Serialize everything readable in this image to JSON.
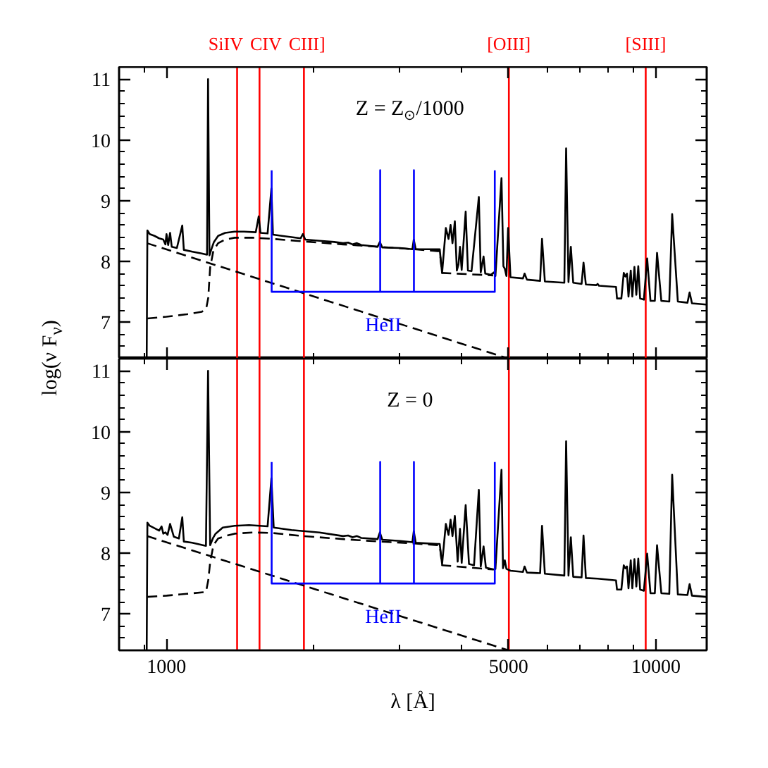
{
  "chart_data": [
    {
      "type": "line",
      "log": "x",
      "tick_labels": "y",
      "ylabel": "log(ν F$_{ν}$)",
      "annotations": [
        "Z = Z$_{⊙}$/1000"
      ],
      "xlim": [
        800,
        12700
      ],
      "xticks": [
        {
          "value": 900,
          "label": null
        },
        1000,
        {
          "value": 2000,
          "label": null
        },
        {
          "value": 3000,
          "label": null
        },
        {
          "value": 4000,
          "label": null
        },
        5000,
        {
          "value": 6000,
          "label": null
        },
        {
          "value": 7000,
          "label": null
        },
        {
          "value": 8000,
          "label": null
        },
        {
          "value": 9000,
          "label": null
        },
        10000
      ],
      "ylim": [
        6.4,
        11.2
      ],
      "yticks": [
        {
          "value": 6.6,
          "label": null
        },
        {
          "value": 6.8,
          "label": null
        },
        7,
        {
          "value": 7.2,
          "label": null
        },
        {
          "value": 7.4,
          "label": null
        },
        {
          "value": 7.6,
          "label": null
        },
        {
          "value": 7.8,
          "label": null
        },
        8,
        {
          "value": 8.2,
          "label": null
        },
        {
          "value": 8.4,
          "label": null
        },
        {
          "value": 8.6,
          "label": null
        },
        {
          "value": 8.8,
          "label": null
        },
        9,
        {
          "value": 9.2,
          "label": null
        },
        {
          "value": 9.4,
          "label": null
        },
        {
          "value": 9.6,
          "label": null
        },
        {
          "value": 9.8,
          "label": null
        },
        10,
        {
          "value": 10.2,
          "label": null
        },
        {
          "value": 10.4,
          "label": null
        },
        {
          "value": 10.6,
          "label": null
        },
        {
          "value": 10.8,
          "label": null
        },
        11
      ],
      "ref_lines": [
        {
          "axis": "x",
          "value": 1394,
          "label": "SiIV",
          "color": "#ff0000"
        },
        {
          "axis": "x",
          "value": 1549,
          "label": "CIV",
          "color": "#ff0000"
        },
        {
          "axis": "x",
          "value": 1909,
          "label": "CIII]",
          "color": "#ff0000"
        },
        {
          "axis": "x",
          "value": 5007,
          "label": "[OIII]",
          "color": "#ff0000"
        },
        {
          "axis": "x",
          "value": 9532,
          "label": "[SIII]",
          "color": "#ff0000"
        }
      ],
      "series": [
        {
          "color": "#000000",
          "line_style": "dashed",
          "x": [
            914,
            1000,
            1100,
            1180,
            1205,
            1217,
            1228,
            1247,
            1275,
            1318,
            1378,
            1500,
            1650,
            1900,
            2295,
            2729,
            3201,
            3577,
            3616,
            3657,
            4650
          ],
          "values": [
            7.06,
            7.09,
            7.13,
            7.17,
            7.22,
            7.4,
            7.9,
            8.18,
            8.3,
            8.36,
            8.39,
            8.39,
            8.37,
            8.33,
            8.28,
            8.24,
            8.2,
            8.17,
            8.17,
            7.81,
            7.77
          ]
        },
        {
          "color": "#000000",
          "line_style": "dashed",
          "x": [
            912,
            5000
          ],
          "values": [
            8.3,
            6.4
          ]
        },
        {
          "color": "#000000",
          "line_style": "solid",
          "x": [
            911,
            914,
            924,
            945,
            966,
            985,
            995,
            1000,
            1008,
            1017,
            1025,
            1050,
            1077,
            1085,
            1130,
            1180,
            1210,
            1216,
            1224,
            1235,
            1250,
            1275,
            1318,
            1378,
            1440,
            1522,
            1543,
            1556,
            1609,
            1638,
            1650,
            1720,
            1800,
            1880,
            1900,
            1921,
            2054,
            2200,
            2295,
            2350,
            2400,
            2450,
            2500,
            2564,
            2700,
            2729,
            2760,
            3000,
            3180,
            3201,
            3230,
            3400,
            3616,
            3657,
            3722,
            3770,
            3806,
            3840,
            3883,
            3920,
            3950,
            3978,
            4010,
            4086,
            4130,
            4200,
            4347,
            4386,
            4445,
            4480,
            4600,
            4667,
            4700,
            4836,
            4880,
            4912,
            4950,
            4989,
            5045,
            5350,
            5391,
            5451,
            5800,
            5852,
            5931,
            6500,
            6555,
            6628,
            6702,
            6777,
            7050,
            7114,
            7193,
            7550,
            7603,
            7650,
            8290,
            8327,
            8500,
            8596,
            8660,
            8728,
            8790,
            8884,
            8950,
            9039,
            9120,
            9204,
            9284,
            9450,
            9597,
            9748,
            9950,
            10054,
            10259,
            10650,
            10795,
            11087,
            11600,
            11718,
            11850,
            12665
          ],
          "values": [
            6.4,
            8.51,
            8.45,
            8.42,
            8.38,
            8.36,
            8.28,
            8.45,
            8.27,
            8.47,
            8.24,
            8.22,
            8.59,
            8.19,
            8.16,
            8.13,
            8.11,
            11.0,
            8.1,
            8.2,
            8.32,
            8.42,
            8.47,
            8.49,
            8.49,
            8.48,
            8.74,
            8.47,
            8.46,
            9.2,
            8.44,
            8.42,
            8.4,
            8.38,
            8.45,
            8.36,
            8.34,
            8.32,
            8.3,
            8.31,
            8.28,
            8.3,
            8.27,
            8.26,
            8.24,
            8.32,
            8.23,
            8.22,
            8.2,
            8.36,
            8.2,
            8.2,
            8.2,
            7.81,
            8.55,
            8.37,
            8.6,
            8.3,
            8.66,
            7.85,
            7.95,
            8.24,
            7.86,
            8.82,
            7.85,
            7.84,
            9.06,
            7.82,
            8.08,
            7.8,
            7.78,
            7.82,
            7.76,
            9.37,
            7.92,
            7.88,
            7.76,
            8.55,
            7.74,
            7.72,
            7.8,
            7.7,
            7.68,
            8.37,
            7.67,
            7.65,
            9.86,
            7.66,
            8.24,
            7.65,
            7.63,
            7.98,
            7.62,
            7.61,
            7.63,
            7.6,
            7.58,
            7.39,
            7.39,
            7.81,
            7.75,
            7.8,
            7.42,
            7.85,
            7.42,
            7.91,
            7.45,
            7.92,
            7.39,
            7.37,
            8.05,
            7.35,
            7.35,
            8.14,
            7.35,
            7.34,
            8.78,
            7.34,
            7.32,
            7.49,
            7.31,
            7.29
          ]
        },
        {
          "name": "HeII",
          "color": "#0000ff",
          "line_style": "solid",
          "x": [
            1640,
            1640,
            2733,
            2733,
            2733,
            3203,
            3203,
            3203,
            4686,
            4686
          ],
          "values": [
            9.5,
            7.5,
            7.5,
            9.5,
            7.5,
            7.5,
            9.5,
            7.5,
            7.5,
            9.5
          ]
        }
      ]
    },
    {
      "type": "line",
      "log": "x",
      "xlabel": "λ [Å]",
      "annotations": [
        "Z = 0"
      ],
      "xlim": [
        800,
        12700
      ],
      "xticks": [
        {
          "value": 900,
          "label": null
        },
        1000,
        {
          "value": 2000,
          "label": null
        },
        {
          "value": 3000,
          "label": null
        },
        {
          "value": 4000,
          "label": null
        },
        5000,
        {
          "value": 6000,
          "label": null
        },
        {
          "value": 7000,
          "label": null
        },
        {
          "value": 8000,
          "label": null
        },
        {
          "value": 9000,
          "label": null
        },
        10000
      ],
      "ylim": [
        6.4,
        11.2
      ],
      "yticks": [
        {
          "value": 6.6,
          "label": null
        },
        {
          "value": 6.8,
          "label": null
        },
        7,
        {
          "value": 7.2,
          "label": null
        },
        {
          "value": 7.4,
          "label": null
        },
        {
          "value": 7.6,
          "label": null
        },
        {
          "value": 7.8,
          "label": null
        },
        8,
        {
          "value": 8.2,
          "label": null
        },
        {
          "value": 8.4,
          "label": null
        },
        {
          "value": 8.6,
          "label": null
        },
        {
          "value": 8.8,
          "label": null
        },
        9,
        {
          "value": 9.2,
          "label": null
        },
        {
          "value": 9.4,
          "label": null
        },
        {
          "value": 9.6,
          "label": null
        },
        {
          "value": 9.8,
          "label": null
        },
        10,
        {
          "value": 10.2,
          "label": null
        },
        {
          "value": 10.4,
          "label": null
        },
        {
          "value": 10.6,
          "label": null
        },
        {
          "value": 10.8,
          "label": null
        },
        11
      ],
      "ref_lines": [
        {
          "axis": "x",
          "value": 1394,
          "color": "#ff0000"
        },
        {
          "axis": "x",
          "value": 1549,
          "color": "#ff0000"
        },
        {
          "axis": "x",
          "value": 1909,
          "color": "#ff0000"
        },
        {
          "axis": "x",
          "value": 5007,
          "color": "#ff0000"
        },
        {
          "axis": "x",
          "value": 9532,
          "color": "#ff0000"
        }
      ],
      "series": [
        {
          "color": "#000000",
          "line_style": "dashed",
          "x": [
            914,
            1000,
            1100,
            1204,
            1217,
            1228,
            1247,
            1275,
            1318,
            1378,
            1500,
            1650,
            1900,
            2295,
            2729,
            3201,
            3577,
            3616,
            3657,
            4650
          ],
          "values": [
            7.28,
            7.3,
            7.33,
            7.36,
            7.55,
            7.85,
            8.13,
            8.24,
            8.28,
            8.32,
            8.34,
            8.33,
            8.28,
            8.23,
            8.19,
            8.16,
            8.13,
            8.13,
            7.8,
            7.73
          ]
        },
        {
          "color": "#000000",
          "line_style": "dashed",
          "x": [
            912,
            5000
          ],
          "values": [
            8.28,
            6.4
          ]
        },
        {
          "color": "#000000",
          "line_style": "solid",
          "x": [
            911,
            914,
            924,
            945,
            966,
            977,
            985,
            995,
            1005,
            1017,
            1035,
            1060,
            1077,
            1085,
            1128,
            1204,
            1216,
            1228,
            1245,
            1260,
            1303,
            1378,
            1475,
            1609,
            1638,
            1656,
            1800,
            2054,
            2295,
            2350,
            2400,
            2450,
            2500,
            2700,
            2729,
            2760,
            3000,
            3180,
            3201,
            3230,
            3577,
            3616,
            3657,
            3722,
            3770,
            3806,
            3840,
            3883,
            3935,
            3978,
            4010,
            4086,
            4150,
            4250,
            4347,
            4386,
            4445,
            4494,
            4667,
            4700,
            4836,
            4870,
            4912,
            4950,
            5045,
            5350,
            5391,
            5451,
            5800,
            5852,
            5931,
            6500,
            6555,
            6628,
            6702,
            6777,
            7050,
            7114,
            7193,
            7603,
            8290,
            8327,
            8500,
            8596,
            8660,
            8728,
            8790,
            8884,
            8950,
            9039,
            9120,
            9204,
            9284,
            9450,
            9597,
            9748,
            9950,
            10054,
            10259,
            10650,
            10795,
            11087,
            11600,
            11718,
            11850,
            12665
          ],
          "values": [
            6.4,
            8.5,
            8.45,
            8.41,
            8.37,
            8.44,
            8.32,
            8.34,
            8.3,
            8.48,
            8.27,
            8.24,
            8.59,
            8.19,
            8.17,
            8.12,
            11.0,
            8.13,
            8.25,
            8.32,
            8.42,
            8.45,
            8.46,
            8.44,
            9.23,
            8.42,
            8.38,
            8.34,
            8.28,
            8.29,
            8.26,
            8.28,
            8.25,
            8.23,
            8.34,
            8.22,
            8.2,
            8.18,
            8.36,
            8.17,
            8.15,
            8.15,
            7.82,
            8.48,
            8.3,
            8.55,
            8.28,
            8.61,
            7.86,
            8.4,
            7.84,
            8.79,
            7.82,
            7.8,
            9.04,
            7.78,
            8.11,
            7.76,
            7.73,
            7.74,
            9.37,
            7.75,
            7.88,
            7.74,
            7.71,
            7.69,
            7.78,
            7.68,
            7.67,
            8.45,
            7.66,
            7.63,
            9.84,
            7.63,
            8.26,
            7.61,
            7.6,
            8.29,
            7.59,
            7.58,
            7.55,
            7.4,
            7.4,
            7.8,
            7.75,
            7.78,
            7.42,
            7.88,
            7.42,
            7.9,
            7.45,
            7.91,
            7.4,
            7.38,
            7.99,
            7.34,
            7.34,
            8.13,
            7.34,
            7.33,
            9.29,
            7.32,
            7.31,
            7.49,
            7.3,
            7.28
          ]
        },
        {
          "name": "HeII",
          "color": "#0000ff",
          "line_style": "solid",
          "x": [
            1640,
            1640,
            2733,
            2733,
            2733,
            3203,
            3203,
            3203,
            4686,
            4686
          ],
          "values": [
            9.5,
            7.5,
            7.5,
            9.5,
            7.5,
            7.5,
            9.5,
            7.5,
            7.5,
            9.5
          ]
        }
      ]
    }
  ]
}
